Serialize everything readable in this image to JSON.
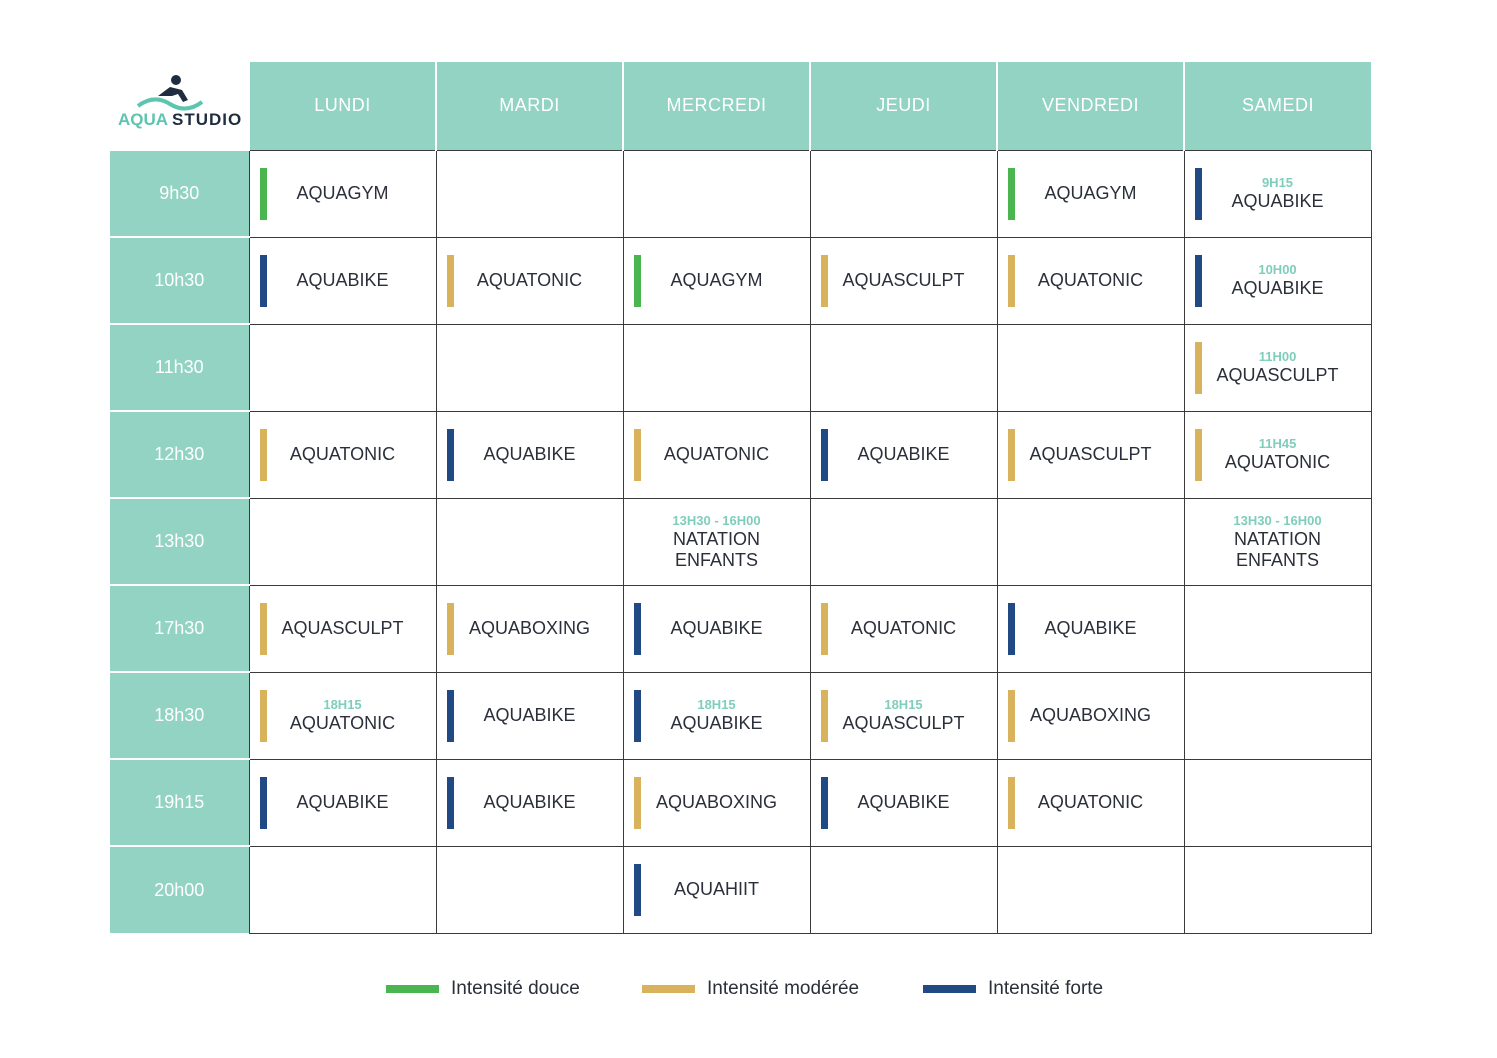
{
  "brand": {
    "logo_part1": "AQUA",
    "logo_part2": "STUDIO",
    "accent_color": "#92d3c3"
  },
  "intensity_colors": {
    "douce": "#4bb54f",
    "moderee": "#d9b25c",
    "forte": "#214a85"
  },
  "days": [
    "LUNDI",
    "MARDI",
    "MERCREDI",
    "JEUDI",
    "VENDREDI",
    "SAMEDI"
  ],
  "rows": [
    {
      "time": "9h30",
      "cells": [
        {
          "name": "AQUAGYM",
          "intensity": "douce"
        },
        null,
        null,
        null,
        {
          "name": "AQUAGYM",
          "intensity": "douce"
        },
        {
          "time": "9H15",
          "name": "AQUABIKE",
          "intensity": "forte"
        }
      ]
    },
    {
      "time": "10h30",
      "cells": [
        {
          "name": "AQUABIKE",
          "intensity": "forte"
        },
        {
          "name": "AQUATONIC",
          "intensity": "moderee"
        },
        {
          "name": "AQUAGYM",
          "intensity": "douce"
        },
        {
          "name": "AQUASCULPT",
          "intensity": "moderee"
        },
        {
          "name": "AQUATONIC",
          "intensity": "moderee"
        },
        {
          "time": "10H00",
          "name": "AQUABIKE",
          "intensity": "forte"
        }
      ]
    },
    {
      "time": "11h30",
      "cells": [
        null,
        null,
        null,
        null,
        null,
        {
          "time": "11H00",
          "name": "AQUASCULPT",
          "intensity": "moderee"
        }
      ]
    },
    {
      "time": "12h30",
      "cells": [
        {
          "name": "AQUATONIC",
          "intensity": "moderee"
        },
        {
          "name": "AQUABIKE",
          "intensity": "forte"
        },
        {
          "name": "AQUATONIC",
          "intensity": "moderee"
        },
        {
          "name": "AQUABIKE",
          "intensity": "forte"
        },
        {
          "name": "AQUASCULPT",
          "intensity": "moderee"
        },
        {
          "time": "11H45",
          "name": "AQUATONIC",
          "intensity": "moderee"
        }
      ]
    },
    {
      "time": "13h30",
      "cells": [
        null,
        null,
        {
          "time": "13H30 - 16H00",
          "name": "NATATION ENFANTS"
        },
        null,
        null,
        {
          "time": "13H30 - 16H00",
          "name": "NATATION ENFANTS"
        }
      ]
    },
    {
      "time": "17h30",
      "cells": [
        {
          "name": "AQUASCULPT",
          "intensity": "moderee"
        },
        {
          "name": "AQUABOXING",
          "intensity": "moderee"
        },
        {
          "name": "AQUABIKE",
          "intensity": "forte"
        },
        {
          "name": "AQUATONIC",
          "intensity": "moderee"
        },
        {
          "name": "AQUABIKE",
          "intensity": "forte"
        },
        null
      ]
    },
    {
      "time": "18h30",
      "cells": [
        {
          "time": "18H15",
          "name": "AQUATONIC",
          "intensity": "moderee"
        },
        {
          "name": "AQUABIKE",
          "intensity": "forte"
        },
        {
          "time": "18H15",
          "name": "AQUABIKE",
          "intensity": "forte"
        },
        {
          "time": "18H15",
          "name": "AQUASCULPT",
          "intensity": "moderee"
        },
        {
          "name": "AQUABOXING",
          "intensity": "moderee"
        },
        null
      ]
    },
    {
      "time": "19h15",
      "cells": [
        {
          "name": "AQUABIKE",
          "intensity": "forte"
        },
        {
          "name": "AQUABIKE",
          "intensity": "forte"
        },
        {
          "name": "AQUABOXING",
          "intensity": "moderee"
        },
        {
          "name": "AQUABIKE",
          "intensity": "forte"
        },
        {
          "name": "AQUATONIC",
          "intensity": "moderee"
        },
        null
      ]
    },
    {
      "time": "20h00",
      "cells": [
        null,
        null,
        {
          "name": "AQUAHIIT",
          "intensity": "forte"
        },
        null,
        null,
        null
      ]
    }
  ],
  "legend": [
    {
      "key": "douce",
      "label": "Intensité douce"
    },
    {
      "key": "moderee",
      "label": "Intensité modérée"
    },
    {
      "key": "forte",
      "label": "Intensité forte"
    }
  ]
}
